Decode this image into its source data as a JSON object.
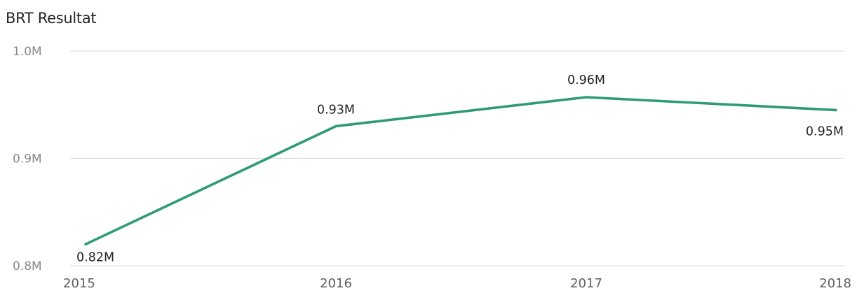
{
  "chart_data": {
    "type": "line",
    "title": "BRT Resultat",
    "xlabel": "",
    "ylabel": "",
    "categories": [
      "2015",
      "2016",
      "2017",
      "2018"
    ],
    "series": [
      {
        "values": [
          820000,
          930000,
          957000,
          945000
        ],
        "data_labels": [
          "0.82M",
          "0.93M",
          "0.96M",
          "0.95M"
        ],
        "color": "#2d9b74"
      }
    ],
    "ylim": [
      800000,
      1000000
    ],
    "yticks": [
      {
        "value": 800000,
        "label": "0.8M"
      },
      {
        "value": 900000,
        "label": "0.9M"
      },
      {
        "value": 1000000,
        "label": "1.0M"
      }
    ],
    "grid": true,
    "legend": "none"
  }
}
